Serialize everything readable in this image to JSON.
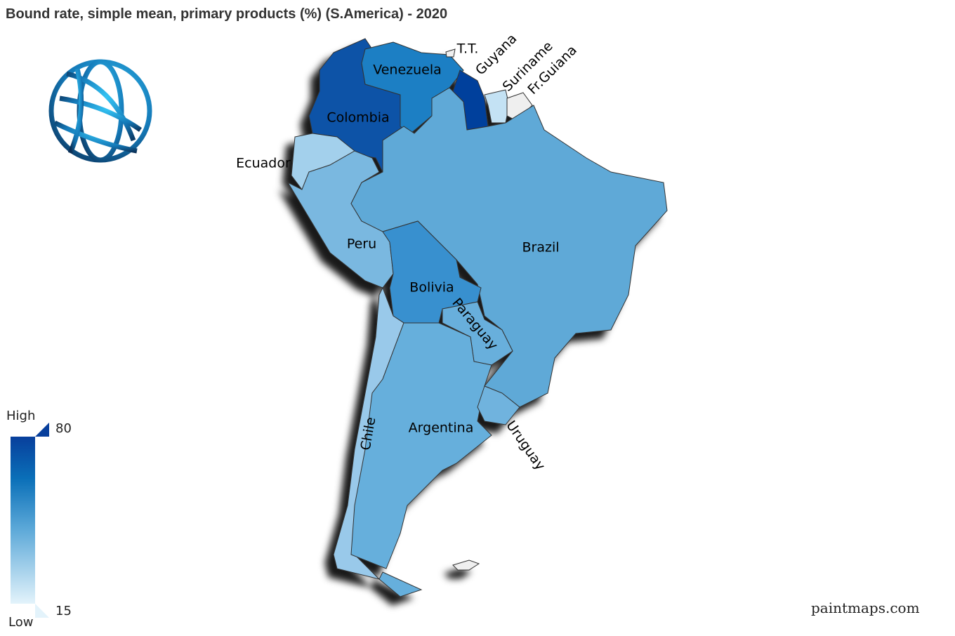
{
  "title": "Bound rate, simple mean, primary products (%) (S.America) - 2020",
  "legend": {
    "high_label": "High",
    "low_label": "Low",
    "max": 80,
    "min": 15,
    "colors": [
      "#e3f3fb",
      "#5ba8d8",
      "#0a6fb8",
      "#083f9c"
    ]
  },
  "countries": [
    {
      "label": "Colombia",
      "color": "#0a52a7"
    },
    {
      "label": "Venezuela",
      "color": "#1a7fc4"
    },
    {
      "label": "T.T.",
      "color": "#efefef"
    },
    {
      "label": "Guyana",
      "color": "#06409c"
    },
    {
      "label": "Suriname",
      "color": "#c4e2f4"
    },
    {
      "label": "Fr.Guiana",
      "color": "#efefef"
    },
    {
      "label": "Ecuador",
      "color": "#a3d0ec"
    },
    {
      "label": "Peru",
      "color": "#7ab8e0"
    },
    {
      "label": "Brazil",
      "color": "#5ea9d7"
    },
    {
      "label": "Bolivia",
      "color": "#3990cf"
    },
    {
      "label": "Paraguay",
      "color": "#68afdc"
    },
    {
      "label": "Chile",
      "color": "#99c9ea"
    },
    {
      "label": "Argentina",
      "color": "#66afdc"
    },
    {
      "label": "Uruguay",
      "color": "#6fb3de"
    }
  ],
  "credit": "paintmaps.com"
}
